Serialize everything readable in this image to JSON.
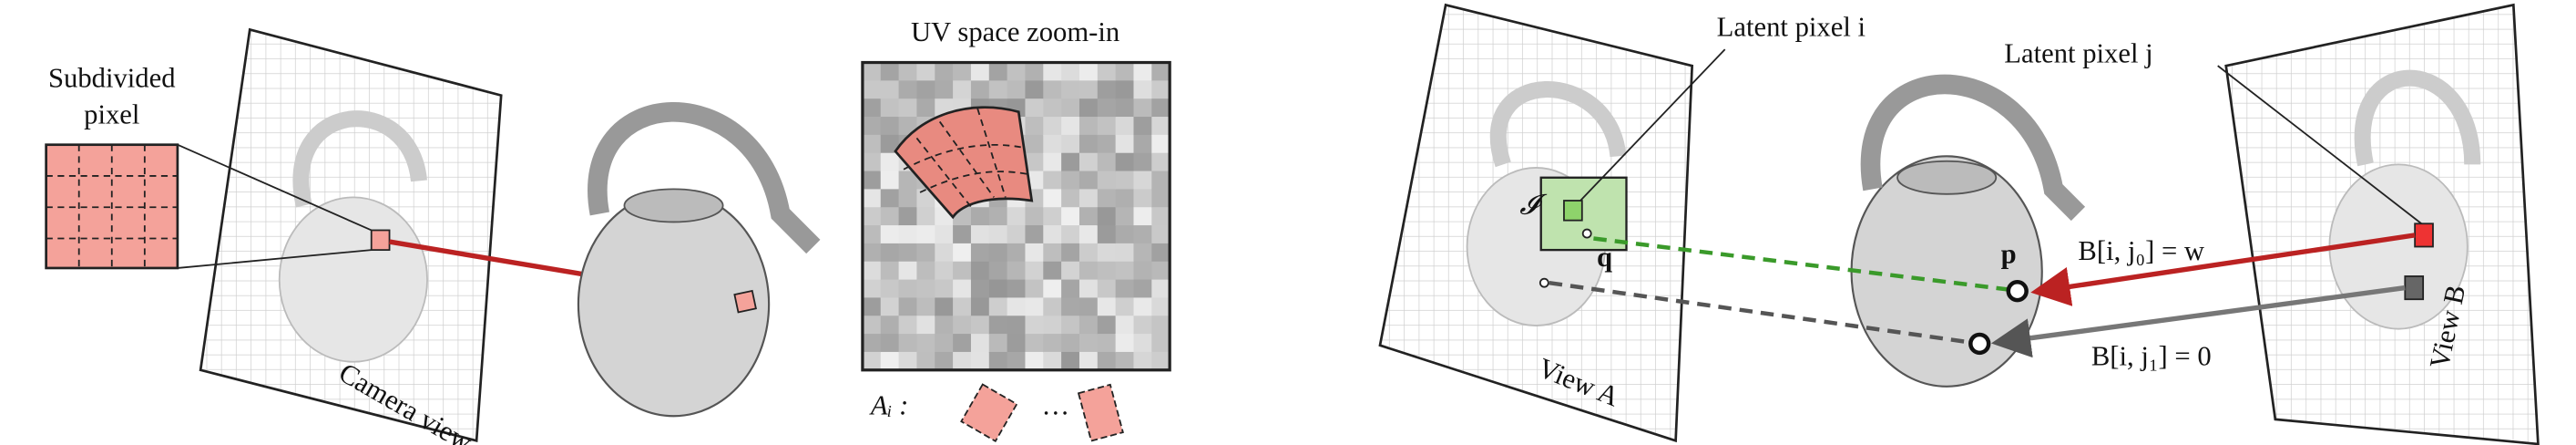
{
  "left": {
    "subdivided_label": [
      "Subdivided",
      "pixel"
    ],
    "camera_view": "Camera view",
    "uv_title": "UV space zoom-in",
    "a_label": "Aᵢ :",
    "ellipsis": "…"
  },
  "right": {
    "latent_i": "Latent pixel i",
    "latent_j": "Latent pixel j",
    "script_i": "𝓘",
    "q": "q",
    "p": "p",
    "view_a": "View A",
    "view_b": "View B",
    "eq_w": "B[i, j₀] = w",
    "eq_0": "B[i, j₁] = 0"
  }
}
